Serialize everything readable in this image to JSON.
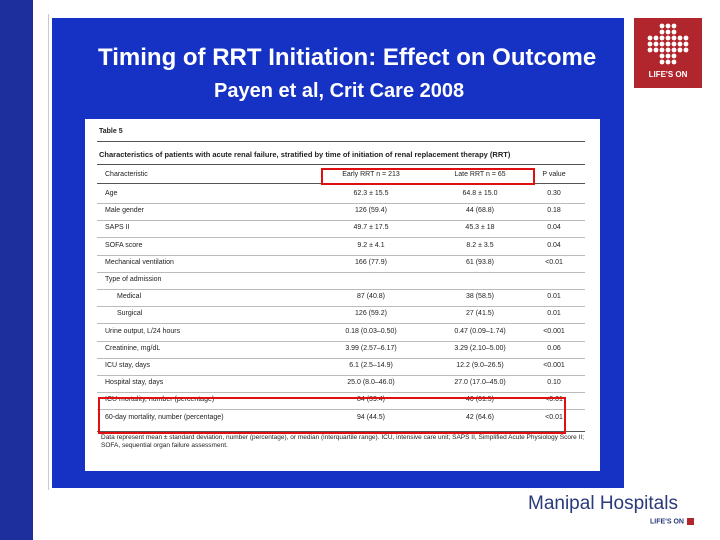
{
  "slide": {
    "title": "Timing of RRT Initiation: Effect on Outcome",
    "subtitle": "Payen et al, Crit Care 2008"
  },
  "table": {
    "label": "Table 5",
    "caption": "Characteristics of patients with acute renal failure, stratified by time of initiation of renal replacement therapy (RRT)",
    "headers": [
      "Characteristic",
      "Early RRT n = 213",
      "Late RRT n = 65",
      "P value"
    ],
    "rows": [
      {
        "label": "Age",
        "early": "62.3 ± 15.5",
        "late": "64.8 ± 15.0",
        "p": "0.30"
      },
      {
        "label": "Male gender",
        "early": "126 (59.4)",
        "late": "44 (68.8)",
        "p": "0.18"
      },
      {
        "label": "SAPS II",
        "early": "49.7 ± 17.5",
        "late": "45.3 ± 18",
        "p": "0.04"
      },
      {
        "label": "SOFA score",
        "early": "9.2 ± 4.1",
        "late": "8.2 ± 3.5",
        "p": "0.04"
      },
      {
        "label": "Mechanical ventilation",
        "early": "166 (77.9)",
        "late": "61 (93.8)",
        "p": "<0.01"
      },
      {
        "label": "Type of admission",
        "early": "",
        "late": "",
        "p": ""
      },
      {
        "label": "Medical",
        "early": "87 (40.8)",
        "late": "38 (58.5)",
        "p": "0.01"
      },
      {
        "label": "Surgical",
        "early": "126 (59.2)",
        "late": "27 (41.5)",
        "p": "0.01"
      },
      {
        "label": "Urine output, L/24 hours",
        "early": "0.18 (0.03–0.50)",
        "late": "0.47 (0.09–1.74)",
        "p": "<0.001"
      },
      {
        "label": "Creatinine, mg/dL",
        "early": "3.99 (2.57–6.17)",
        "late": "3.29 (2.10–5.00)",
        "p": "0.06"
      },
      {
        "label": "ICU stay, days",
        "early": "6.1 (2.5–14.9)",
        "late": "12.2 (9.0–26.5)",
        "p": "<0.001"
      },
      {
        "label": "Hospital stay, days",
        "early": "25.0 (8.0–46.0)",
        "late": "27.0 (17.0–45.0)",
        "p": "0.10"
      },
      {
        "label": "ICU mortality, number (percentage)",
        "early": "84 (39.4)",
        "late": "40 (61.5)",
        "p": "<0.01"
      },
      {
        "label": "60-day mortality, number (percentage)",
        "early": "94 (44.5)",
        "late": "42 (64.6)",
        "p": "<0.01"
      }
    ],
    "footnote": "Data represent mean ± standard deviation, number (percentage), or median (interquartile range). ICU, intensive care unit; SAPS II, Simplified Acute Physiology Score II; SOFA, sequential organ failure assessment."
  },
  "logo": {
    "text": "LIFE'S ON",
    "color": "#b0262c"
  },
  "footer": {
    "brand": "Manipal Hospitals",
    "tagline": "LIFE'S ON"
  }
}
